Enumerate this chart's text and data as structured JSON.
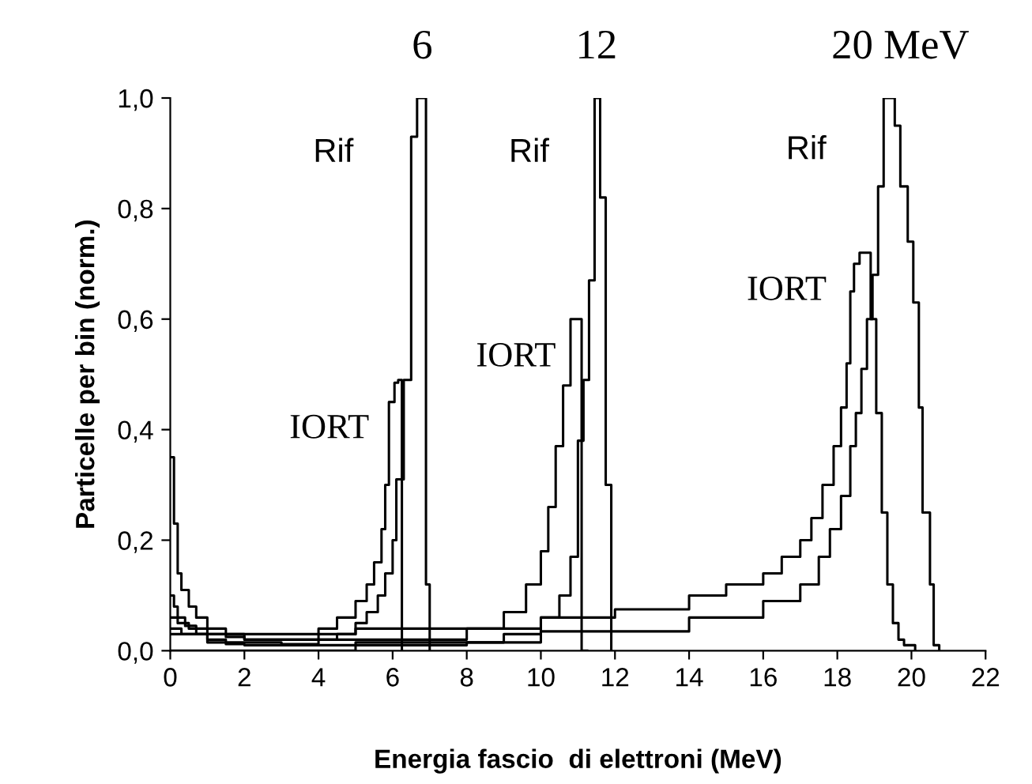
{
  "chart_data": {
    "type": "step",
    "xlabel": "Energia fascio  di elettroni (MeV)",
    "ylabel": "Particelle per bin (norm.)",
    "xlim": [
      0,
      22
    ],
    "ylim": [
      0,
      1.0
    ],
    "xticks": [
      0,
      2,
      4,
      6,
      8,
      10,
      12,
      14,
      16,
      18,
      20,
      22
    ],
    "yticks": [
      {
        "value": 0,
        "label": "0,0"
      },
      {
        "value": 0.2,
        "label": "0,2"
      },
      {
        "value": 0.4,
        "label": "0,4"
      },
      {
        "value": 0.6,
        "label": "0,6"
      },
      {
        "value": 0.8,
        "label": "0,8"
      },
      {
        "value": 1.0,
        "label": "1,0"
      }
    ],
    "grid": false,
    "legend": false,
    "marker": "none",
    "line_style": "solid",
    "series": [
      {
        "color": "#000000",
        "x": [
          0,
          0.1,
          0.2,
          0.4,
          0.7,
          1.0,
          1.5,
          2,
          3,
          4,
          4.5,
          5,
          5.3,
          5.6,
          5.8,
          6.0,
          6.1,
          6.3,
          6.5,
          6.66,
          6.75,
          6.9,
          7.0
        ],
        "values": [
          0.1,
          0.08,
          0.06,
          0.045,
          0.03,
          0.02,
          0.012,
          0.01,
          0.012,
          0.02,
          0.03,
          0.05,
          0.07,
          0.1,
          0.14,
          0.2,
          0.31,
          0.49,
          0.93,
          1.0,
          1.0,
          0.12,
          0
        ]
      },
      {
        "color": "#000000",
        "x": [
          0,
          0.1,
          0.2,
          0.3,
          0.5,
          0.7,
          1.0,
          1.5,
          2,
          3,
          4,
          4.5,
          5,
          5.3,
          5.5,
          5.7,
          5.8,
          5.9,
          6.05,
          6.15,
          6.25
        ],
        "values": [
          0.35,
          0.23,
          0.14,
          0.11,
          0.08,
          0.06,
          0.04,
          0.025,
          0.02,
          0.02,
          0.04,
          0.06,
          0.09,
          0.12,
          0.16,
          0.22,
          0.3,
          0.45,
          0.485,
          0.49,
          0
        ]
      },
      {
        "color": "#000000",
        "x": [
          0,
          0.2,
          0.5,
          1,
          2,
          4,
          6,
          8,
          9,
          9.6,
          10,
          10.2,
          10.4,
          10.6,
          10.8,
          11.1,
          11.25
        ],
        "values": [
          0.06,
          0.05,
          0.04,
          0.03,
          0.02,
          0.02,
          0.02,
          0.04,
          0.07,
          0.12,
          0.18,
          0.26,
          0.37,
          0.48,
          0.6,
          0,
          0
        ]
      },
      {
        "color": "#000000",
        "x": [
          0,
          0.3,
          1,
          3,
          6,
          8,
          9,
          10,
          10.5,
          10.8,
          11.0,
          11.15,
          11.3,
          11.45,
          11.6,
          11.75,
          11.9
        ],
        "values": [
          0.04,
          0.03,
          0.015,
          0.01,
          0.01,
          0.015,
          0.03,
          0.06,
          0.1,
          0.17,
          0.38,
          0.49,
          0.67,
          1.0,
          0.82,
          0.3,
          0
        ]
      },
      {
        "color": "#000000",
        "x": [
          0,
          2,
          5,
          10,
          12,
          14,
          15,
          16,
          16.5,
          17,
          17.3,
          17.6,
          17.9,
          18.1,
          18.25,
          18.35,
          18.45,
          18.6,
          18.9,
          19.05,
          19.2,
          19.35,
          19.5,
          19.65,
          19.8,
          19.95,
          20.1
        ],
        "values": [
          0.03,
          0.03,
          0.04,
          0.06,
          0.075,
          0.1,
          0.12,
          0.14,
          0.17,
          0.2,
          0.24,
          0.3,
          0.37,
          0.44,
          0.52,
          0.65,
          0.7,
          0.72,
          0.6,
          0.43,
          0.25,
          0.12,
          0.05,
          0.02,
          0.01,
          0.01,
          0
        ]
      },
      {
        "color": "#000000",
        "x": [
          0,
          5,
          10,
          14,
          16,
          17,
          17.5,
          17.8,
          18.1,
          18.35,
          18.5,
          18.65,
          18.8,
          18.95,
          19.1,
          19.25,
          19.55,
          19.7,
          19.9,
          20.05,
          20.2,
          20.3,
          20.5,
          20.6,
          20.75
        ],
        "values": [
          0.0,
          0.015,
          0.035,
          0.06,
          0.09,
          0.12,
          0.17,
          0.22,
          0.28,
          0.37,
          0.43,
          0.51,
          0.6,
          0.68,
          0.84,
          1.0,
          0.95,
          0.84,
          0.74,
          0.63,
          0.44,
          0.25,
          0.12,
          0.01,
          0
        ]
      }
    ],
    "annotations": [
      "Rif",
      "IORT",
      "Rif",
      "IORT",
      "Rif",
      "IORT",
      {
        "text": "6",
        "x": 6.8,
        "y": 1.0
      },
      {
        "text": "12",
        "x": 11.5,
        "y": 1.0
      },
      {
        "text": "20 MeV",
        "x": 19.7,
        "y": 1.0
      }
    ]
  }
}
